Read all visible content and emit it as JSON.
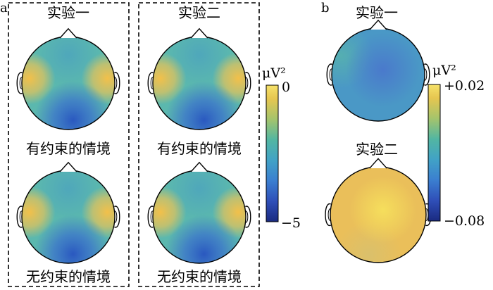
{
  "panel_a": {
    "label": "a",
    "experiment_titles": [
      "实验一",
      "实验二"
    ],
    "condition_labels": [
      "有约束的情境",
      "无约束的情境"
    ],
    "colorbar": {
      "unit": "μV²",
      "max_label": "0",
      "min_label": "−5"
    }
  },
  "panel_b": {
    "label": "b",
    "experiment_titles": [
      "实验一",
      "实验二"
    ],
    "colorbar": {
      "unit": "μV²",
      "max_label": "+0.02",
      "min_label": "−0.08"
    }
  },
  "colors": {
    "colormap": [
      "#1a2a80",
      "#2f4fb8",
      "#3b7fd0",
      "#41a2c6",
      "#52b6a2",
      "#8fc47a",
      "#d6c657",
      "#f2c84a",
      "#f6e26a"
    ],
    "outline": "#000000"
  }
}
